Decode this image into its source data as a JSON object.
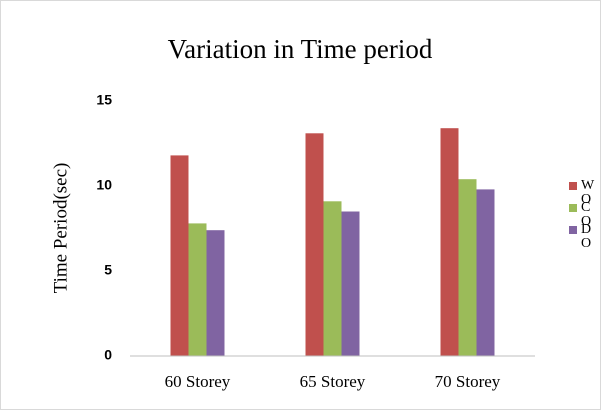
{
  "chart_data": {
    "type": "bar",
    "title": "Variation in Time period",
    "y_label": "Time Period(sec)",
    "categories": [
      "60 Storey",
      "65 Storey",
      "70 Storey"
    ],
    "series": [
      {
        "name": "WO",
        "color": "#c0504d",
        "values": [
          11.8,
          13.1,
          13.4
        ]
      },
      {
        "name": "CO",
        "color": "#9bbb59",
        "values": [
          7.8,
          9.1,
          10.4
        ]
      },
      {
        "name": "DO",
        "color": "#8064a2",
        "values": [
          7.4,
          8.5,
          9.8
        ]
      }
    ],
    "ylim": [
      0,
      15
    ],
    "yticks": [
      0,
      5,
      10,
      15
    ],
    "grid": false,
    "legend": "right"
  }
}
